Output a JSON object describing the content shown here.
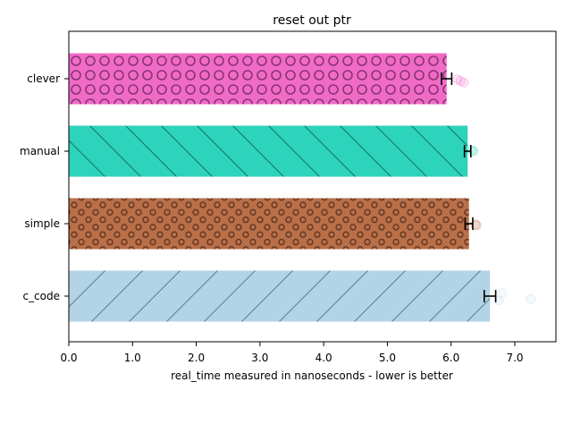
{
  "chart_data": {
    "type": "bar",
    "orientation": "horizontal",
    "title": "reset out ptr",
    "xlabel": "real_time measured in nanoseconds - lower is better",
    "ylabel": "",
    "xlim": [
      0,
      7.64
    ],
    "xticks": [
      "0.0",
      "1.0",
      "2.0",
      "3.0",
      "4.0",
      "5.0",
      "6.0",
      "7.0"
    ],
    "categories": [
      "clever",
      "manual",
      "simple",
      "c_code"
    ],
    "values": [
      5.93,
      6.26,
      6.28,
      6.61
    ],
    "errors": [
      0.08,
      0.05,
      0.06,
      0.09
    ],
    "colors": [
      "#f06bc6",
      "#2ed3bb",
      "#b96f48",
      "#b3d4e6"
    ],
    "hatches": [
      "circles-large",
      "backslash",
      "small-circles",
      "slash"
    ],
    "outliers": [
      [
        6.2,
        6.15,
        6.1
      ],
      [
        6.35,
        6.33
      ],
      [
        6.4,
        6.38
      ],
      [
        7.25,
        6.8,
        6.75
      ]
    ],
    "grid": false
  }
}
